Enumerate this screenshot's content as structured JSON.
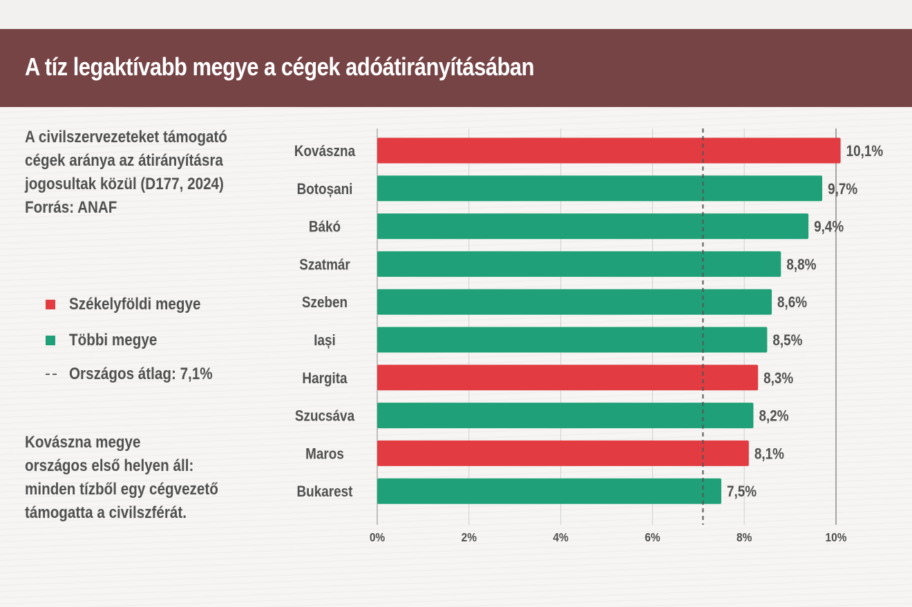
{
  "title": "A tíz legaktívabb megye a cégek adóátirányításában",
  "description": [
    "A civilszervezeteket támogató",
    "cégek aránya az átirányításra",
    "jogosultak közül (D177, 2024)",
    "Forrás: ANAF"
  ],
  "legend": {
    "szekelyfold": "Székelyföldi megye",
    "tobbi": "Többi megye",
    "average": "Országos átlag: 7,1%"
  },
  "note": [
    "Kovászna megye",
    "országos első helyen áll:",
    "minden tízből egy cégvezető",
    "támogatta a civilszférát."
  ],
  "colors": {
    "szekelyfold": "#e23b41",
    "tobbi": "#1fa078",
    "title_bar": "#774446"
  },
  "chart_data": {
    "type": "bar",
    "orientation": "horizontal",
    "categories": [
      "Kovászna",
      "Botoșani",
      "Bákó",
      "Szatmár",
      "Szeben",
      "Iași",
      "Hargita",
      "Szucsáva",
      "Maros",
      "Bukarest"
    ],
    "values": [
      10.1,
      9.7,
      9.4,
      8.8,
      8.6,
      8.5,
      8.3,
      8.2,
      8.1,
      7.5
    ],
    "value_labels": [
      "10,1%",
      "9,7%",
      "9,4%",
      "8,8%",
      "8,6%",
      "8,5%",
      "8,3%",
      "8,2%",
      "8,1%",
      "7,5%"
    ],
    "groups": [
      "szekelyfold",
      "tobbi",
      "tobbi",
      "tobbi",
      "tobbi",
      "tobbi",
      "szekelyfold",
      "tobbi",
      "szekelyfold",
      "tobbi"
    ],
    "xlim": [
      0,
      10
    ],
    "xticks": [
      0,
      2,
      4,
      6,
      8,
      10
    ],
    "xtick_labels": [
      "0%",
      "2%",
      "4%",
      "6%",
      "8%",
      "10%"
    ],
    "reference_line": 7.1,
    "grid": true
  }
}
